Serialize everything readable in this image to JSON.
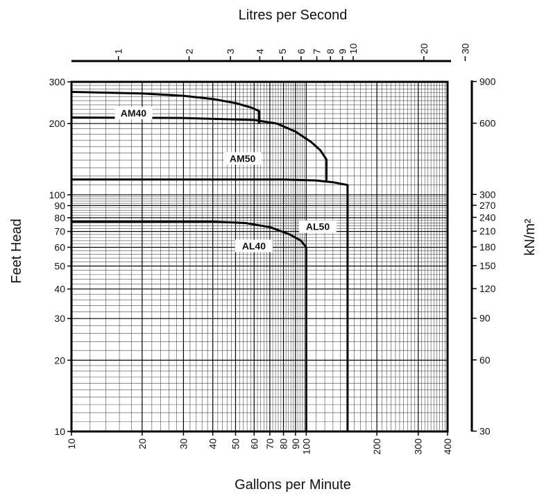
{
  "chart_data": {
    "type": "line",
    "title": "",
    "xlabel": "Gallons per Minute",
    "ylabel": "Feet Head",
    "top_axis_label": "Litres per Second",
    "right_axis_label": "kN/m²",
    "xscale": "log",
    "yscale": "log",
    "xlim": [
      10,
      400
    ],
    "ylim": [
      10,
      300
    ],
    "grid": true,
    "legend": "none (curves labelled directly)",
    "x_ticks": [
      "10",
      "20",
      "30",
      "40",
      "50",
      "60",
      "70",
      "80",
      "90",
      "100",
      "200",
      "300",
      "400"
    ],
    "y_ticks": [
      "10",
      "20",
      "30",
      "40",
      "50",
      "60",
      "70",
      "80",
      "90",
      "100",
      "200",
      "300"
    ],
    "top_ticks": [
      "1",
      "2",
      "3",
      "4",
      "5",
      "6",
      "7",
      "8",
      "9",
      "10",
      "20",
      "30"
    ],
    "right_ticks": [
      "30",
      "60",
      "90",
      "120",
      "150",
      "180",
      "210",
      "240",
      "270",
      "300",
      "600",
      "900"
    ],
    "series": [
      {
        "name": "AM40",
        "x": [
          10,
          20,
          30,
          40,
          50,
          58,
          63,
          63
        ],
        "y": [
          272,
          268,
          262,
          254,
          244,
          234,
          226,
          200
        ]
      },
      {
        "name": "AM50",
        "x": [
          10,
          30,
          60,
          75,
          90,
          105,
          115,
          122,
          122
        ],
        "y": [
          212,
          211,
          207,
          200,
          185,
          167,
          154,
          141,
          115
        ]
      },
      {
        "name": "AL50",
        "x": [
          10,
          40,
          80,
          110,
          130,
          150,
          150
        ],
        "y": [
          116,
          116,
          116,
          115,
          113,
          110,
          10
        ]
      },
      {
        "name": "AL40",
        "x": [
          10,
          40,
          55,
          70,
          85,
          95,
          100,
          100
        ],
        "y": [
          77,
          77,
          76,
          73,
          68,
          64,
          60,
          10
        ]
      }
    ]
  }
}
